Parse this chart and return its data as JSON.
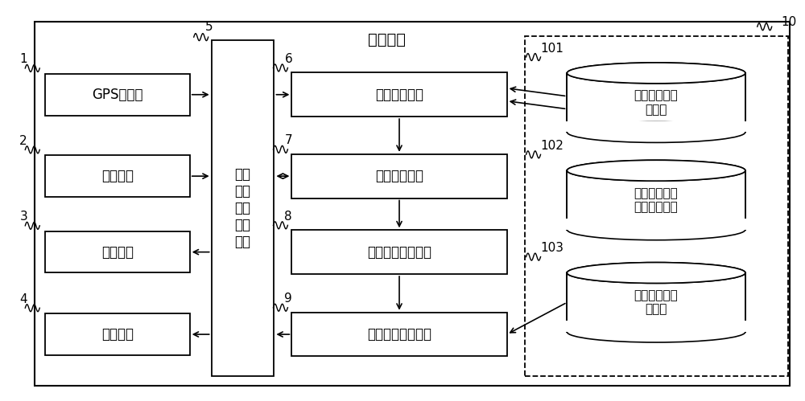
{
  "title": "导航装置",
  "bg_color": "#ffffff",
  "left_boxes": [
    {
      "label": "GPS接收器",
      "num": "1"
    },
    {
      "label": "输入装置",
      "num": "2"
    },
    {
      "label": "显示装置",
      "num": "3"
    },
    {
      "label": "语音装置",
      "num": "4"
    }
  ],
  "center_box": {
    "label": "数据\n输入\n输出\n控制\n单元",
    "num": "5"
  },
  "middle_boxes": [
    {
      "label": "路径规划单元",
      "num": "6"
    },
    {
      "label": "路径导航单元",
      "num": "7"
    },
    {
      "label": "三维场景定位单元",
      "num": "8"
    },
    {
      "label": "三维场景渲染单元",
      "num": "9"
    }
  ],
  "db_boxes": [
    {
      "label": "二维电子地图\n数据库",
      "num": "101"
    },
    {
      "label": "三维诱导及匹\n配关系数据库",
      "num": "102"
    },
    {
      "label": "三维电子地图\n数据库",
      "num": "103"
    }
  ],
  "db_group_num": "10"
}
